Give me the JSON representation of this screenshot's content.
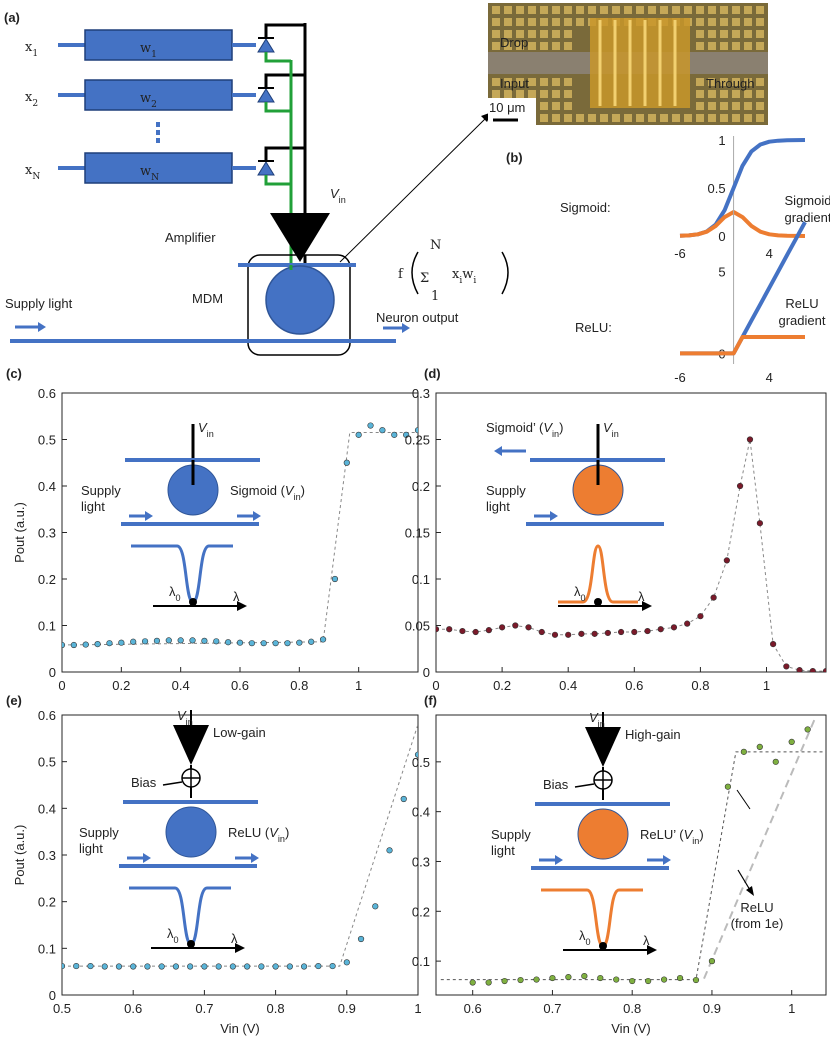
{
  "panel_labels": [
    "(a)",
    "(b)",
    "(c)",
    "(d)",
    "(e)",
    "(f)"
  ],
  "diagram": {
    "rows": [
      {
        "x": {
          "base": "x",
          "sub": "1"
        },
        "w": {
          "base": "w",
          "sub": "1"
        }
      },
      {
        "x": {
          "base": "x",
          "sub": "2"
        },
        "w": {
          "base": "w",
          "sub": "2"
        }
      },
      {
        "x": {
          "base": "x",
          "sub": "N"
        },
        "w": {
          "base": "w",
          "sub": "N"
        }
      }
    ],
    "vin": {
      "base": "V",
      "sub": "in"
    },
    "amplifier": "Amplifier",
    "mdm": "MDM",
    "supply": "Supply light",
    "output": "Neuron output",
    "formula": {
      "f": "f",
      "sigma": "Σ",
      "top": "N",
      "bottom": "1",
      "x": "x",
      "w": "w",
      "sub": "i"
    },
    "micrograph": {
      "drop": "Drop",
      "input": "Input",
      "through": "Through",
      "scale": "10 μm"
    }
  },
  "chart_data": [
    {
      "type": "line",
      "label": "Sigmoid:",
      "annotation": [
        "Sigmoid",
        "gradient"
      ],
      "x": [
        -6,
        -5,
        -4,
        -3,
        -2,
        -1,
        0,
        1,
        2,
        3,
        4,
        5,
        6,
        7,
        8
      ],
      "xlim": [
        -6,
        8
      ],
      "xticks": [
        -6,
        4
      ],
      "ylim": [
        0,
        1
      ],
      "yticks": [
        0,
        0.5,
        1
      ],
      "series": [
        {
          "color": "#4472c4",
          "values": [
            0.0025,
            0.0067,
            0.018,
            0.047,
            0.119,
            0.269,
            0.5,
            0.731,
            0.881,
            0.953,
            0.982,
            0.993,
            0.998,
            0.999,
            1.0
          ]
        },
        {
          "color": "#ed7d31",
          "values": [
            0.0025,
            0.0066,
            0.018,
            0.045,
            0.105,
            0.197,
            0.25,
            0.197,
            0.105,
            0.045,
            0.018,
            0.0066,
            0.0025,
            0.0009,
            0.0003
          ]
        }
      ]
    },
    {
      "type": "line",
      "label": "ReLU:",
      "annotation": [
        "ReLU",
        "gradient"
      ],
      "x": [
        -6,
        -5,
        -4,
        -3,
        -2,
        -1,
        0,
        1,
        2,
        3,
        4,
        5,
        6,
        7,
        8
      ],
      "xlim": [
        -6,
        8
      ],
      "xticks": [
        -6,
        4
      ],
      "ylim": [
        -0.4,
        8.5
      ],
      "yticks": [
        0,
        5
      ],
      "series": [
        {
          "color": "#4472c4",
          "values": [
            0,
            0,
            0,
            0,
            0,
            0,
            0,
            1,
            2,
            3,
            4,
            5,
            6,
            7,
            8
          ]
        },
        {
          "color": "#ed7d31",
          "values": [
            0,
            0,
            0,
            0,
            0,
            0,
            0,
            1,
            1,
            1,
            1,
            1,
            1,
            1,
            1
          ]
        }
      ]
    },
    {
      "type": "scatter",
      "ylabel": "Pout (a.u.)",
      "xlim": [
        0,
        1.2
      ],
      "xticks": [
        0,
        0.2,
        0.4,
        0.6,
        0.8,
        1
      ],
      "ylim": [
        0,
        0.6
      ],
      "yticks": [
        0,
        0.1,
        0.2,
        0.3,
        0.4,
        0.5,
        0.6
      ],
      "x": [
        0,
        0.04,
        0.08,
        0.12,
        0.16,
        0.2,
        0.24,
        0.28,
        0.32,
        0.36,
        0.4,
        0.44,
        0.48,
        0.52,
        0.56,
        0.6,
        0.64,
        0.68,
        0.72,
        0.76,
        0.8,
        0.84,
        0.88,
        0.92,
        0.96,
        1.0,
        1.04,
        1.08,
        1.12,
        1.16,
        1.2
      ],
      "series": [
        {
          "color": "#5ab4d8",
          "values": [
            0.058,
            0.058,
            0.059,
            0.06,
            0.062,
            0.063,
            0.065,
            0.066,
            0.067,
            0.068,
            0.068,
            0.068,
            0.067,
            0.066,
            0.064,
            0.063,
            0.062,
            0.062,
            0.062,
            0.062,
            0.063,
            0.065,
            0.07,
            0.2,
            0.45,
            0.51,
            0.53,
            0.52,
            0.51,
            0.51,
            0.52
          ]
        }
      ],
      "fits": [
        {
          "color": "#888888",
          "x": [
            0,
            0.88,
            0.97,
            1.2
          ],
          "values": [
            0.058,
            0.065,
            0.515,
            0.515
          ]
        }
      ],
      "inset": {
        "vin": {
          "base": "V",
          "sub": "in"
        },
        "supply": [
          "Supply",
          "light"
        ],
        "output": {
          "pre": "Sigmoid (",
          "v": "V",
          "sub": "in",
          "post": ")"
        },
        "lambda0": {
          "base": "λ",
          "sub": "0"
        },
        "lambda": "λ"
      }
    },
    {
      "type": "scatter",
      "connect": true,
      "xlim": [
        0,
        1.18
      ],
      "xticks": [
        0,
        0.2,
        0.4,
        0.6,
        0.8,
        1
      ],
      "ylim": [
        0,
        0.3
      ],
      "yticks": [
        0,
        0.05,
        0.1,
        0.15,
        0.2,
        0.25,
        0.3
      ],
      "x": [
        0,
        0.04,
        0.08,
        0.12,
        0.16,
        0.2,
        0.24,
        0.28,
        0.32,
        0.36,
        0.4,
        0.44,
        0.48,
        0.52,
        0.56,
        0.6,
        0.64,
        0.68,
        0.72,
        0.76,
        0.8,
        0.84,
        0.88,
        0.92,
        0.95,
        0.98,
        1.02,
        1.06,
        1.1,
        1.14,
        1.18
      ],
      "series": [
        {
          "color": "#7a1a2a",
          "values": [
            0.046,
            0.046,
            0.044,
            0.043,
            0.045,
            0.048,
            0.05,
            0.048,
            0.043,
            0.04,
            0.04,
            0.041,
            0.041,
            0.042,
            0.043,
            0.043,
            0.044,
            0.046,
            0.048,
            0.052,
            0.06,
            0.08,
            0.12,
            0.2,
            0.25,
            0.16,
            0.03,
            0.006,
            0.002,
            0.001,
            0.001
          ]
        }
      ],
      "inset": {
        "vin": {
          "base": "V",
          "sub": "in"
        },
        "supply": [
          "Supply",
          "light"
        ],
        "output": {
          "pre": "Sigmoid’ (",
          "v": "V",
          "sub": "in",
          "post": ")"
        },
        "lambda0": {
          "base": "λ",
          "sub": "0"
        },
        "lambda": "λ"
      }
    },
    {
      "type": "scatter",
      "ylabel": "Pout (a.u.)",
      "xlabel": "Vin (V)",
      "xlim": [
        0.5,
        1
      ],
      "xticks": [
        0.5,
        0.6,
        0.7,
        0.8,
        0.9,
        1
      ],
      "ylim": [
        0,
        0.6
      ],
      "yticks": [
        0,
        0.1,
        0.2,
        0.3,
        0.4,
        0.5,
        0.6
      ],
      "x": [
        0.5,
        0.52,
        0.54,
        0.56,
        0.58,
        0.6,
        0.62,
        0.64,
        0.66,
        0.68,
        0.7,
        0.72,
        0.74,
        0.76,
        0.78,
        0.8,
        0.82,
        0.84,
        0.86,
        0.88,
        0.9,
        0.92,
        0.94,
        0.96,
        0.98,
        1.0
      ],
      "series": [
        {
          "color": "#5ab4d8",
          "values": [
            0.062,
            0.062,
            0.062,
            0.061,
            0.061,
            0.061,
            0.061,
            0.061,
            0.061,
            0.061,
            0.061,
            0.061,
            0.061,
            0.061,
            0.061,
            0.061,
            0.061,
            0.061,
            0.062,
            0.062,
            0.07,
            0.12,
            0.19,
            0.31,
            0.42,
            0.515
          ]
        }
      ],
      "fits": [
        {
          "color": "#888888",
          "x": [
            0.5,
            0.89,
            1.0
          ],
          "values": [
            0.062,
            0.062,
            0.58
          ]
        }
      ],
      "inset": {
        "vin": {
          "base": "V",
          "sub": "in"
        },
        "gain": "Low-gain",
        "bias": "Bias",
        "supply": [
          "Supply",
          "light"
        ],
        "output": {
          "pre": "ReLU (",
          "v": "V",
          "sub": "in",
          "post": ")"
        },
        "lambda0": {
          "base": "λ",
          "sub": "0"
        },
        "lambda": "λ"
      }
    },
    {
      "type": "scatter",
      "xlabel": "Vin (V)",
      "xlim": [
        0.554,
        1.043
      ],
      "xticks": [
        0.6,
        0.7,
        0.8,
        0.9,
        1
      ],
      "ylim": [
        0.032,
        0.594
      ],
      "yticks": [
        0.1,
        0.2,
        0.3,
        0.4,
        0.5
      ],
      "annotation": [
        "ReLU",
        "(from 1e)"
      ],
      "x": [
        0.6,
        0.62,
        0.64,
        0.66,
        0.68,
        0.7,
        0.72,
        0.74,
        0.76,
        0.78,
        0.8,
        0.82,
        0.84,
        0.86,
        0.88,
        0.9,
        0.92,
        0.94,
        0.96,
        0.98,
        1.0,
        1.02
      ],
      "series": [
        {
          "color": "#7fb040",
          "values": [
            0.057,
            0.057,
            0.06,
            0.062,
            0.063,
            0.066,
            0.068,
            0.07,
            0.066,
            0.063,
            0.06,
            0.06,
            0.063,
            0.066,
            0.062,
            0.1,
            0.45,
            0.52,
            0.53,
            0.5,
            0.54,
            0.565
          ]
        }
      ],
      "fits": [
        {
          "color": "#555555",
          "x": [
            0.56,
            0.88,
            0.93,
            1.04
          ],
          "values": [
            0.063,
            0.063,
            0.52,
            0.52
          ]
        },
        {
          "color": "#bbbbbb",
          "x": [
            0.89,
            1.03
          ],
          "values": [
            0.065,
            0.59
          ]
        }
      ],
      "inset": {
        "vin": {
          "base": "V",
          "sub": "in"
        },
        "gain": "High-gain",
        "bias": "Bias",
        "supply": [
          "Supply",
          "light"
        ],
        "output": {
          "pre": "ReLU’ (",
          "v": "V",
          "sub": "in",
          "post": ")"
        },
        "lambda0": {
          "base": "λ",
          "sub": "0"
        },
        "lambda": "λ"
      }
    }
  ]
}
